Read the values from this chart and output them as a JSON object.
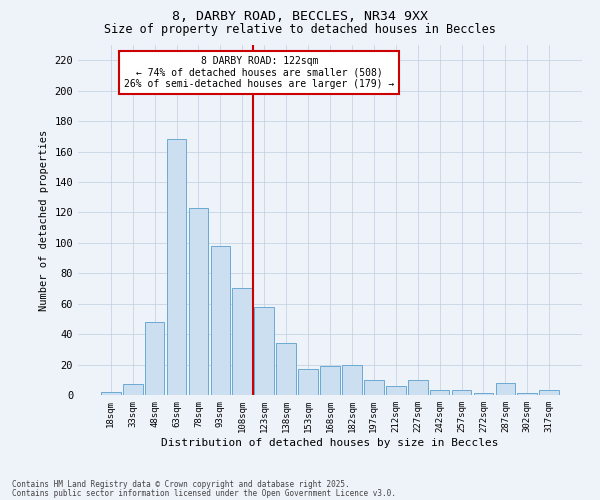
{
  "title_line1": "8, DARBY ROAD, BECCLES, NR34 9XX",
  "title_line2": "Size of property relative to detached houses in Beccles",
  "xlabel": "Distribution of detached houses by size in Beccles",
  "ylabel": "Number of detached properties",
  "bar_labels": [
    "18sqm",
    "33sqm",
    "48sqm",
    "63sqm",
    "78sqm",
    "93sqm",
    "108sqm",
    "123sqm",
    "138sqm",
    "153sqm",
    "168sqm",
    "182sqm",
    "197sqm",
    "212sqm",
    "227sqm",
    "242sqm",
    "257sqm",
    "272sqm",
    "287sqm",
    "302sqm",
    "317sqm"
  ],
  "bar_values": [
    2,
    7,
    48,
    168,
    123,
    98,
    70,
    58,
    34,
    17,
    19,
    20,
    10,
    6,
    10,
    3,
    3,
    1,
    8,
    1,
    3
  ],
  "bar_color": "#ccdff0",
  "bar_edgecolor": "#6aaad4",
  "annotation_text": "8 DARBY ROAD: 122sqm\n← 74% of detached houses are smaller (508)\n26% of semi-detached houses are larger (179) →",
  "vline_index": 7,
  "ylim": [
    0,
    230
  ],
  "yticks": [
    0,
    20,
    40,
    60,
    80,
    100,
    120,
    140,
    160,
    180,
    200,
    220
  ],
  "annotation_box_facecolor": "#ffffff",
  "annotation_box_edgecolor": "#cc0000",
  "vline_color": "#cc0000",
  "background_color": "#eef2f9",
  "grid_color": "#c0cfe0",
  "footer_line1": "Contains HM Land Registry data © Crown copyright and database right 2025.",
  "footer_line2": "Contains public sector information licensed under the Open Government Licence v3.0."
}
